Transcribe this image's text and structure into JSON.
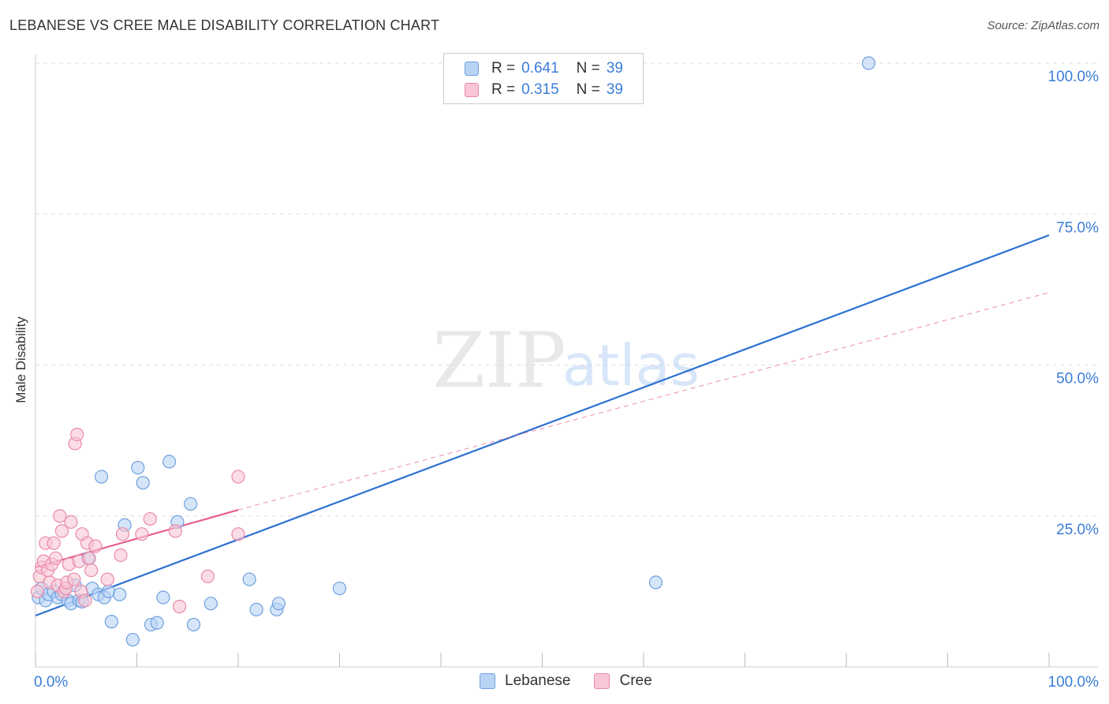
{
  "title": "LEBANESE VS CREE MALE DISABILITY CORRELATION CHART",
  "source": "Source: ZipAtlas.com",
  "watermark": {
    "zip": "ZIP",
    "atlas": "atlas"
  },
  "legend": {
    "r_label": "R =",
    "n_label": "N =",
    "entries": [
      {
        "name": "Lebanese",
        "r": "0.641",
        "n": "39"
      },
      {
        "name": "Cree",
        "r": "0.315",
        "n": "39"
      }
    ]
  },
  "colors": {
    "lebanese_fill": "#b9d3f5",
    "lebanese_stroke": "#6fa0de",
    "lebanese_line": "#2e72d2",
    "cree_fill": "#f8c6d6",
    "cree_stroke": "#ea8aa9",
    "cree_line": "#e8608a",
    "tick_text": "#3b7dd8",
    "grid": "#dddddd"
  },
  "chart_data": {
    "type": "scatter",
    "title": "LEBANESE VS CREE MALE DISABILITY CORRELATION CHART",
    "xlabel": "",
    "ylabel": "Male Disability",
    "xlim": [
      0,
      100
    ],
    "ylim": [
      0,
      100
    ],
    "x_tick_labels": [
      "0.0%",
      "100.0%"
    ],
    "y_ticks": [
      25,
      50,
      75,
      100
    ],
    "y_tick_labels": [
      "25.0%",
      "50.0%",
      "75.0%",
      "100.0%"
    ],
    "grid": true,
    "series": [
      {
        "name": "Lebanese",
        "points": [
          [
            0.3,
            11.5
          ],
          [
            0.6,
            13.0
          ],
          [
            1.0,
            11.0
          ],
          [
            1.3,
            12.0
          ],
          [
            1.8,
            12.5
          ],
          [
            2.2,
            11.5
          ],
          [
            2.6,
            12.0
          ],
          [
            3.2,
            11.0
          ],
          [
            3.5,
            10.5
          ],
          [
            3.9,
            13.5
          ],
          [
            4.3,
            11.0
          ],
          [
            4.6,
            10.8
          ],
          [
            5.2,
            18.0
          ],
          [
            5.6,
            13.0
          ],
          [
            6.2,
            12.0
          ],
          [
            6.5,
            31.5
          ],
          [
            6.8,
            11.5
          ],
          [
            7.2,
            12.5
          ],
          [
            7.5,
            7.5
          ],
          [
            8.3,
            12.0
          ],
          [
            8.8,
            23.5
          ],
          [
            9.6,
            4.5
          ],
          [
            10.1,
            33.0
          ],
          [
            10.6,
            30.5
          ],
          [
            11.4,
            7.0
          ],
          [
            12.0,
            7.3
          ],
          [
            12.6,
            11.5
          ],
          [
            13.2,
            34.0
          ],
          [
            14.0,
            24.0
          ],
          [
            15.3,
            27.0
          ],
          [
            15.6,
            7.0
          ],
          [
            17.3,
            10.5
          ],
          [
            21.1,
            14.5
          ],
          [
            21.8,
            9.5
          ],
          [
            23.8,
            9.5
          ],
          [
            24.0,
            10.5
          ],
          [
            30.0,
            13.0
          ],
          [
            61.2,
            14.0
          ],
          [
            82.2,
            100.0
          ]
        ],
        "trend_line": {
          "x": [
            0,
            100
          ],
          "y": [
            8.5,
            71.5
          ],
          "style": "solid"
        }
      },
      {
        "name": "Cree",
        "points": [
          [
            0.2,
            12.5
          ],
          [
            0.4,
            15.0
          ],
          [
            0.6,
            16.5
          ],
          [
            0.8,
            17.5
          ],
          [
            1.0,
            20.5
          ],
          [
            1.2,
            16.0
          ],
          [
            1.4,
            14.0
          ],
          [
            1.6,
            17.0
          ],
          [
            1.8,
            20.5
          ],
          [
            2.0,
            18.0
          ],
          [
            2.2,
            13.5
          ],
          [
            2.4,
            25.0
          ],
          [
            2.6,
            22.5
          ],
          [
            2.8,
            12.5
          ],
          [
            3.0,
            13.0
          ],
          [
            3.1,
            14.0
          ],
          [
            3.3,
            17.0
          ],
          [
            3.5,
            24.0
          ],
          [
            3.8,
            14.5
          ],
          [
            3.9,
            37.0
          ],
          [
            4.1,
            38.5
          ],
          [
            4.3,
            17.5
          ],
          [
            4.5,
            12.5
          ],
          [
            4.6,
            22.0
          ],
          [
            4.9,
            11.0
          ],
          [
            5.1,
            20.5
          ],
          [
            5.3,
            18.0
          ],
          [
            5.5,
            16.0
          ],
          [
            5.9,
            20.0
          ],
          [
            7.1,
            14.5
          ],
          [
            8.4,
            18.5
          ],
          [
            8.6,
            22.0
          ],
          [
            10.5,
            22.0
          ],
          [
            11.3,
            24.5
          ],
          [
            13.8,
            22.5
          ],
          [
            14.2,
            10.0
          ],
          [
            17.0,
            15.0
          ],
          [
            20.0,
            31.5
          ],
          [
            20.0,
            22.0
          ]
        ],
        "trend_line": {
          "x": [
            0,
            20
          ],
          "y": [
            16.5,
            26.0
          ],
          "style": "solid"
        },
        "trend_extension": {
          "x": [
            20,
            100
          ],
          "y": [
            26.0,
            62.0
          ],
          "style": "dashed"
        }
      }
    ]
  }
}
